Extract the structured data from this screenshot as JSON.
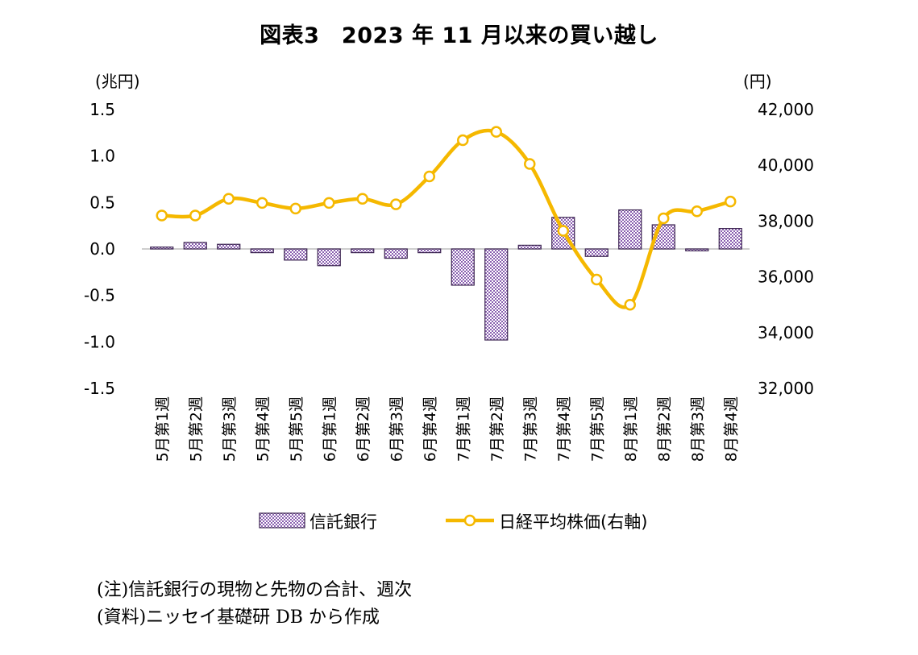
{
  "colors": {
    "bar_fill": "#8a60b0",
    "bar_stroke": "#3b2350",
    "line": "#f5b800",
    "marker_fill": "#ffffff"
  },
  "chart_data": {
    "type": "bar+line",
    "title": "図表3　2023 年 11 月以来の買い越し",
    "left_axis": {
      "unit_label": "(兆円)",
      "ylim": [
        -1.5,
        1.5
      ],
      "ticks": [
        "1.5",
        "1.0",
        "0.5",
        "0.0",
        "-0.5",
        "-1.0",
        "-1.5"
      ]
    },
    "right_axis": {
      "unit_label": "(円)",
      "ylim": [
        32000,
        42000
      ],
      "ticks": [
        "42,000",
        "40,000",
        "38,000",
        "36,000",
        "34,000",
        "32,000"
      ]
    },
    "categories": [
      "5月第1週",
      "5月第2週",
      "5月第3週",
      "5月第4週",
      "5月第5週",
      "6月第1週",
      "6月第2週",
      "6月第3週",
      "6月第4週",
      "7月第1週",
      "7月第2週",
      "7月第3週",
      "7月第4週",
      "7月第5週",
      "8月第1週",
      "8月第2週",
      "8月第3週",
      "8月第4週"
    ],
    "series": [
      {
        "name": "信託銀行",
        "type": "bar",
        "axis": "left",
        "values": [
          0.02,
          0.07,
          0.05,
          -0.04,
          -0.12,
          -0.18,
          -0.04,
          -0.1,
          -0.04,
          -0.39,
          -0.98,
          0.04,
          0.34,
          -0.08,
          0.42,
          0.26,
          -0.02,
          0.22
        ]
      },
      {
        "name": "日経平均株価(右軸)",
        "type": "line",
        "axis": "right",
        "values": [
          38200,
          38200,
          38800,
          38650,
          38450,
          38650,
          38800,
          38600,
          39600,
          40900,
          41200,
          40050,
          37650,
          35900,
          35000,
          38100,
          38350,
          38700
        ]
      }
    ],
    "legend": [
      "信託銀行",
      "日経平均株価(右軸)"
    ]
  },
  "notes": [
    "(注)信託銀行の現物と先物の合計、週次",
    "(資料)ニッセイ基礎研 DB から作成"
  ]
}
